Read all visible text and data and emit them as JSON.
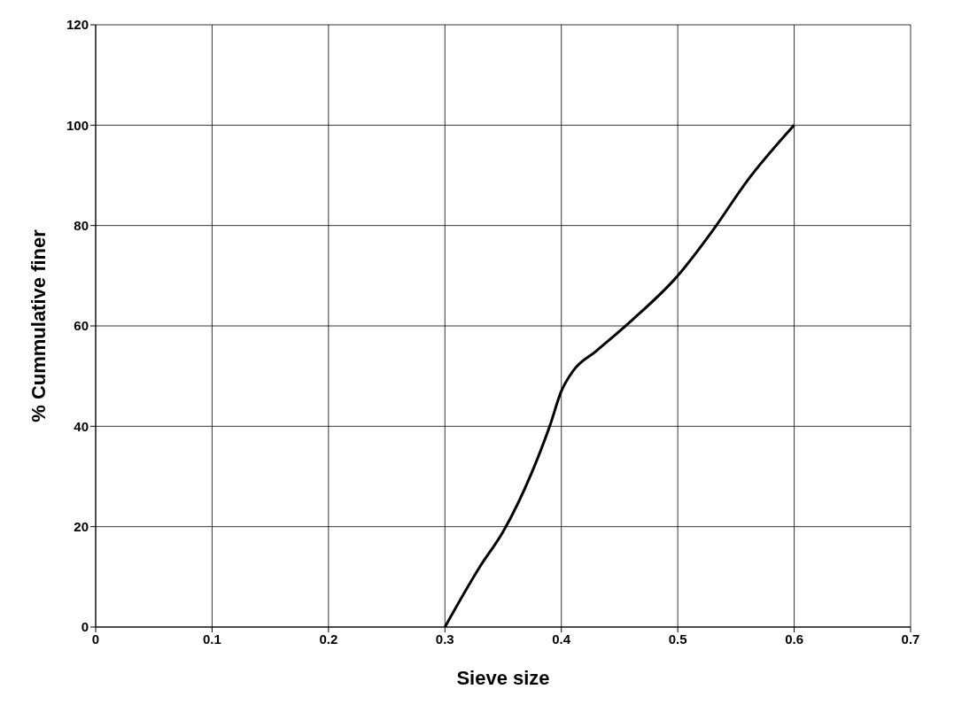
{
  "chart_data": {
    "type": "line",
    "xlabel": "Sieve size",
    "ylabel": "% Cummulative finer",
    "x": [
      0.3,
      0.33,
      0.35,
      0.375,
      0.39,
      0.4,
      0.41,
      0.43,
      0.46,
      0.5,
      0.53,
      0.56,
      0.6
    ],
    "series": [
      {
        "color": "#000000",
        "values": [
          0,
          12,
          19,
          31,
          40,
          47,
          51,
          55,
          61,
          70,
          79,
          89,
          100
        ]
      }
    ],
    "xlim": [
      0,
      0.7
    ],
    "xticks": [
      0,
      0.1,
      0.2,
      0.3,
      0.4,
      0.5,
      0.6,
      0.7
    ],
    "ylim": [
      0,
      120
    ],
    "yticks": [
      0,
      20,
      40,
      60,
      80,
      100,
      120
    ],
    "grid": true,
    "marker": "none",
    "line_style": "solid"
  }
}
